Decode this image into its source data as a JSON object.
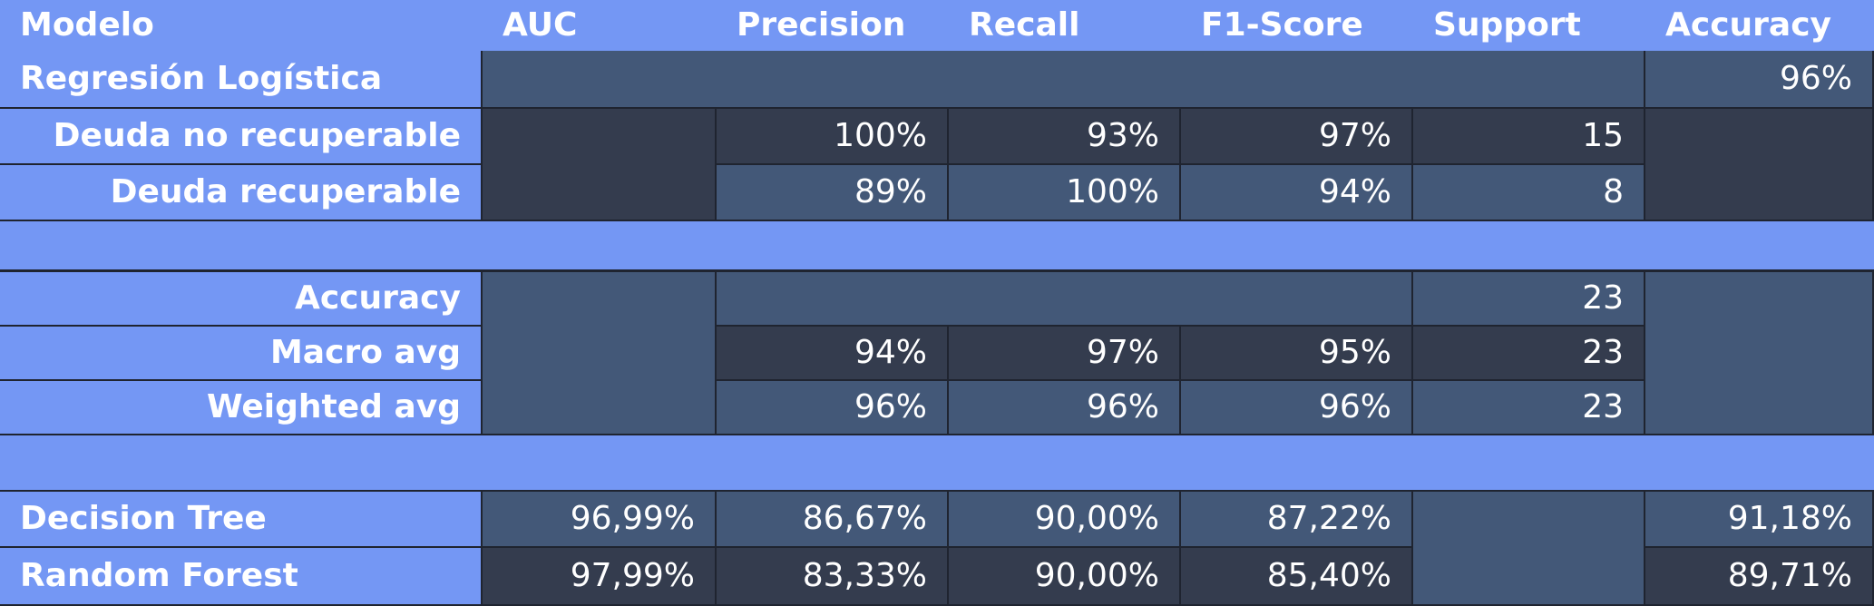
{
  "header": {
    "model": "Modelo",
    "auc": "AUC",
    "precision": "Precision",
    "recall": "Recall",
    "f1": "F1-Score",
    "support": "Support",
    "accuracy": "Accuracy"
  },
  "logistic": {
    "name": "Regresión Logística",
    "accuracy": "96%",
    "rows": [
      {
        "label": "Deuda no recuperable",
        "precision": "100%",
        "recall": "93%",
        "f1": "97%",
        "support": "15"
      },
      {
        "label": "Deuda recuperable",
        "precision": "89%",
        "recall": "100%",
        "f1": "94%",
        "support": "8"
      }
    ]
  },
  "summary": {
    "accuracy": {
      "label": "Accuracy",
      "support": "23"
    },
    "macro": {
      "label": "Macro avg",
      "precision": "94%",
      "recall": "97%",
      "f1": "95%",
      "support": "23"
    },
    "weighted": {
      "label": "Weighted avg",
      "precision": "96%",
      "recall": "96%",
      "f1": "96%",
      "support": "23"
    }
  },
  "models": [
    {
      "name": "Decision Tree",
      "auc": "96,99%",
      "precision": "86,67%",
      "recall": "90,00%",
      "f1": "87,22%",
      "accuracy": "91,18%"
    },
    {
      "name": "Random Forest",
      "auc": "97,99%",
      "precision": "83,33%",
      "recall": "90,00%",
      "f1": "85,40%",
      "accuracy": "89,71%"
    }
  ],
  "colors": {
    "header_blue": "#7497f4",
    "cell_medium": "#435878",
    "cell_dark": "#343c4e"
  }
}
